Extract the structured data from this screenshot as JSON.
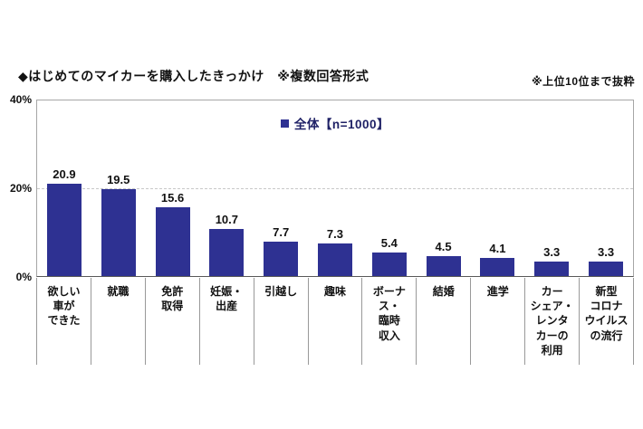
{
  "header": {
    "title": "◆はじめてのマイカーを購入したきっかけ　※複数回答形式",
    "note": "※上位10位まで抜粋"
  },
  "legend": {
    "label": "全体【n=1000】",
    "swatch_color": "#2e3192"
  },
  "chart_data": {
    "type": "bar",
    "title": "はじめてのマイカーを購入したきっかけ（複数回答形式・上位10位まで抜粋）",
    "categories": [
      "欲しい車ができた",
      "就職",
      "免許取得",
      "妊娠・出産",
      "引越し",
      "趣味",
      "ボーナス・臨時収入",
      "結婚",
      "進学",
      "カーシェア・レンタカーの利用",
      "新型コロナウイルスの流行"
    ],
    "tick_label_lines": [
      [
        "欲しい",
        "車が",
        "できた"
      ],
      [
        "就職"
      ],
      [
        "免許",
        "取得"
      ],
      [
        "妊娠・",
        "出産"
      ],
      [
        "引越し"
      ],
      [
        "趣味"
      ],
      [
        "ボーナ",
        "ス・",
        "臨時",
        "収入"
      ],
      [
        "結婚"
      ],
      [
        "進学"
      ],
      [
        "カー",
        "シェア・",
        "レンタ",
        "カーの",
        "利用"
      ],
      [
        "新型",
        "コロナ",
        "ウイルス",
        "の流行"
      ]
    ],
    "values": [
      20.9,
      19.5,
      15.6,
      10.7,
      7.7,
      7.3,
      5.4,
      4.5,
      4.1,
      3.3,
      3.3
    ],
    "series_name": "全体【n=1000】",
    "xlabel": "",
    "ylabel": "%",
    "ylim": [
      0,
      40
    ],
    "yticks": [
      "40%",
      "20%",
      "0%"
    ],
    "gridlines": [
      20
    ],
    "grid_style": "dashed",
    "legend_position": "top-center",
    "bar_color": "#2e3192",
    "value_labels_shown": true
  }
}
